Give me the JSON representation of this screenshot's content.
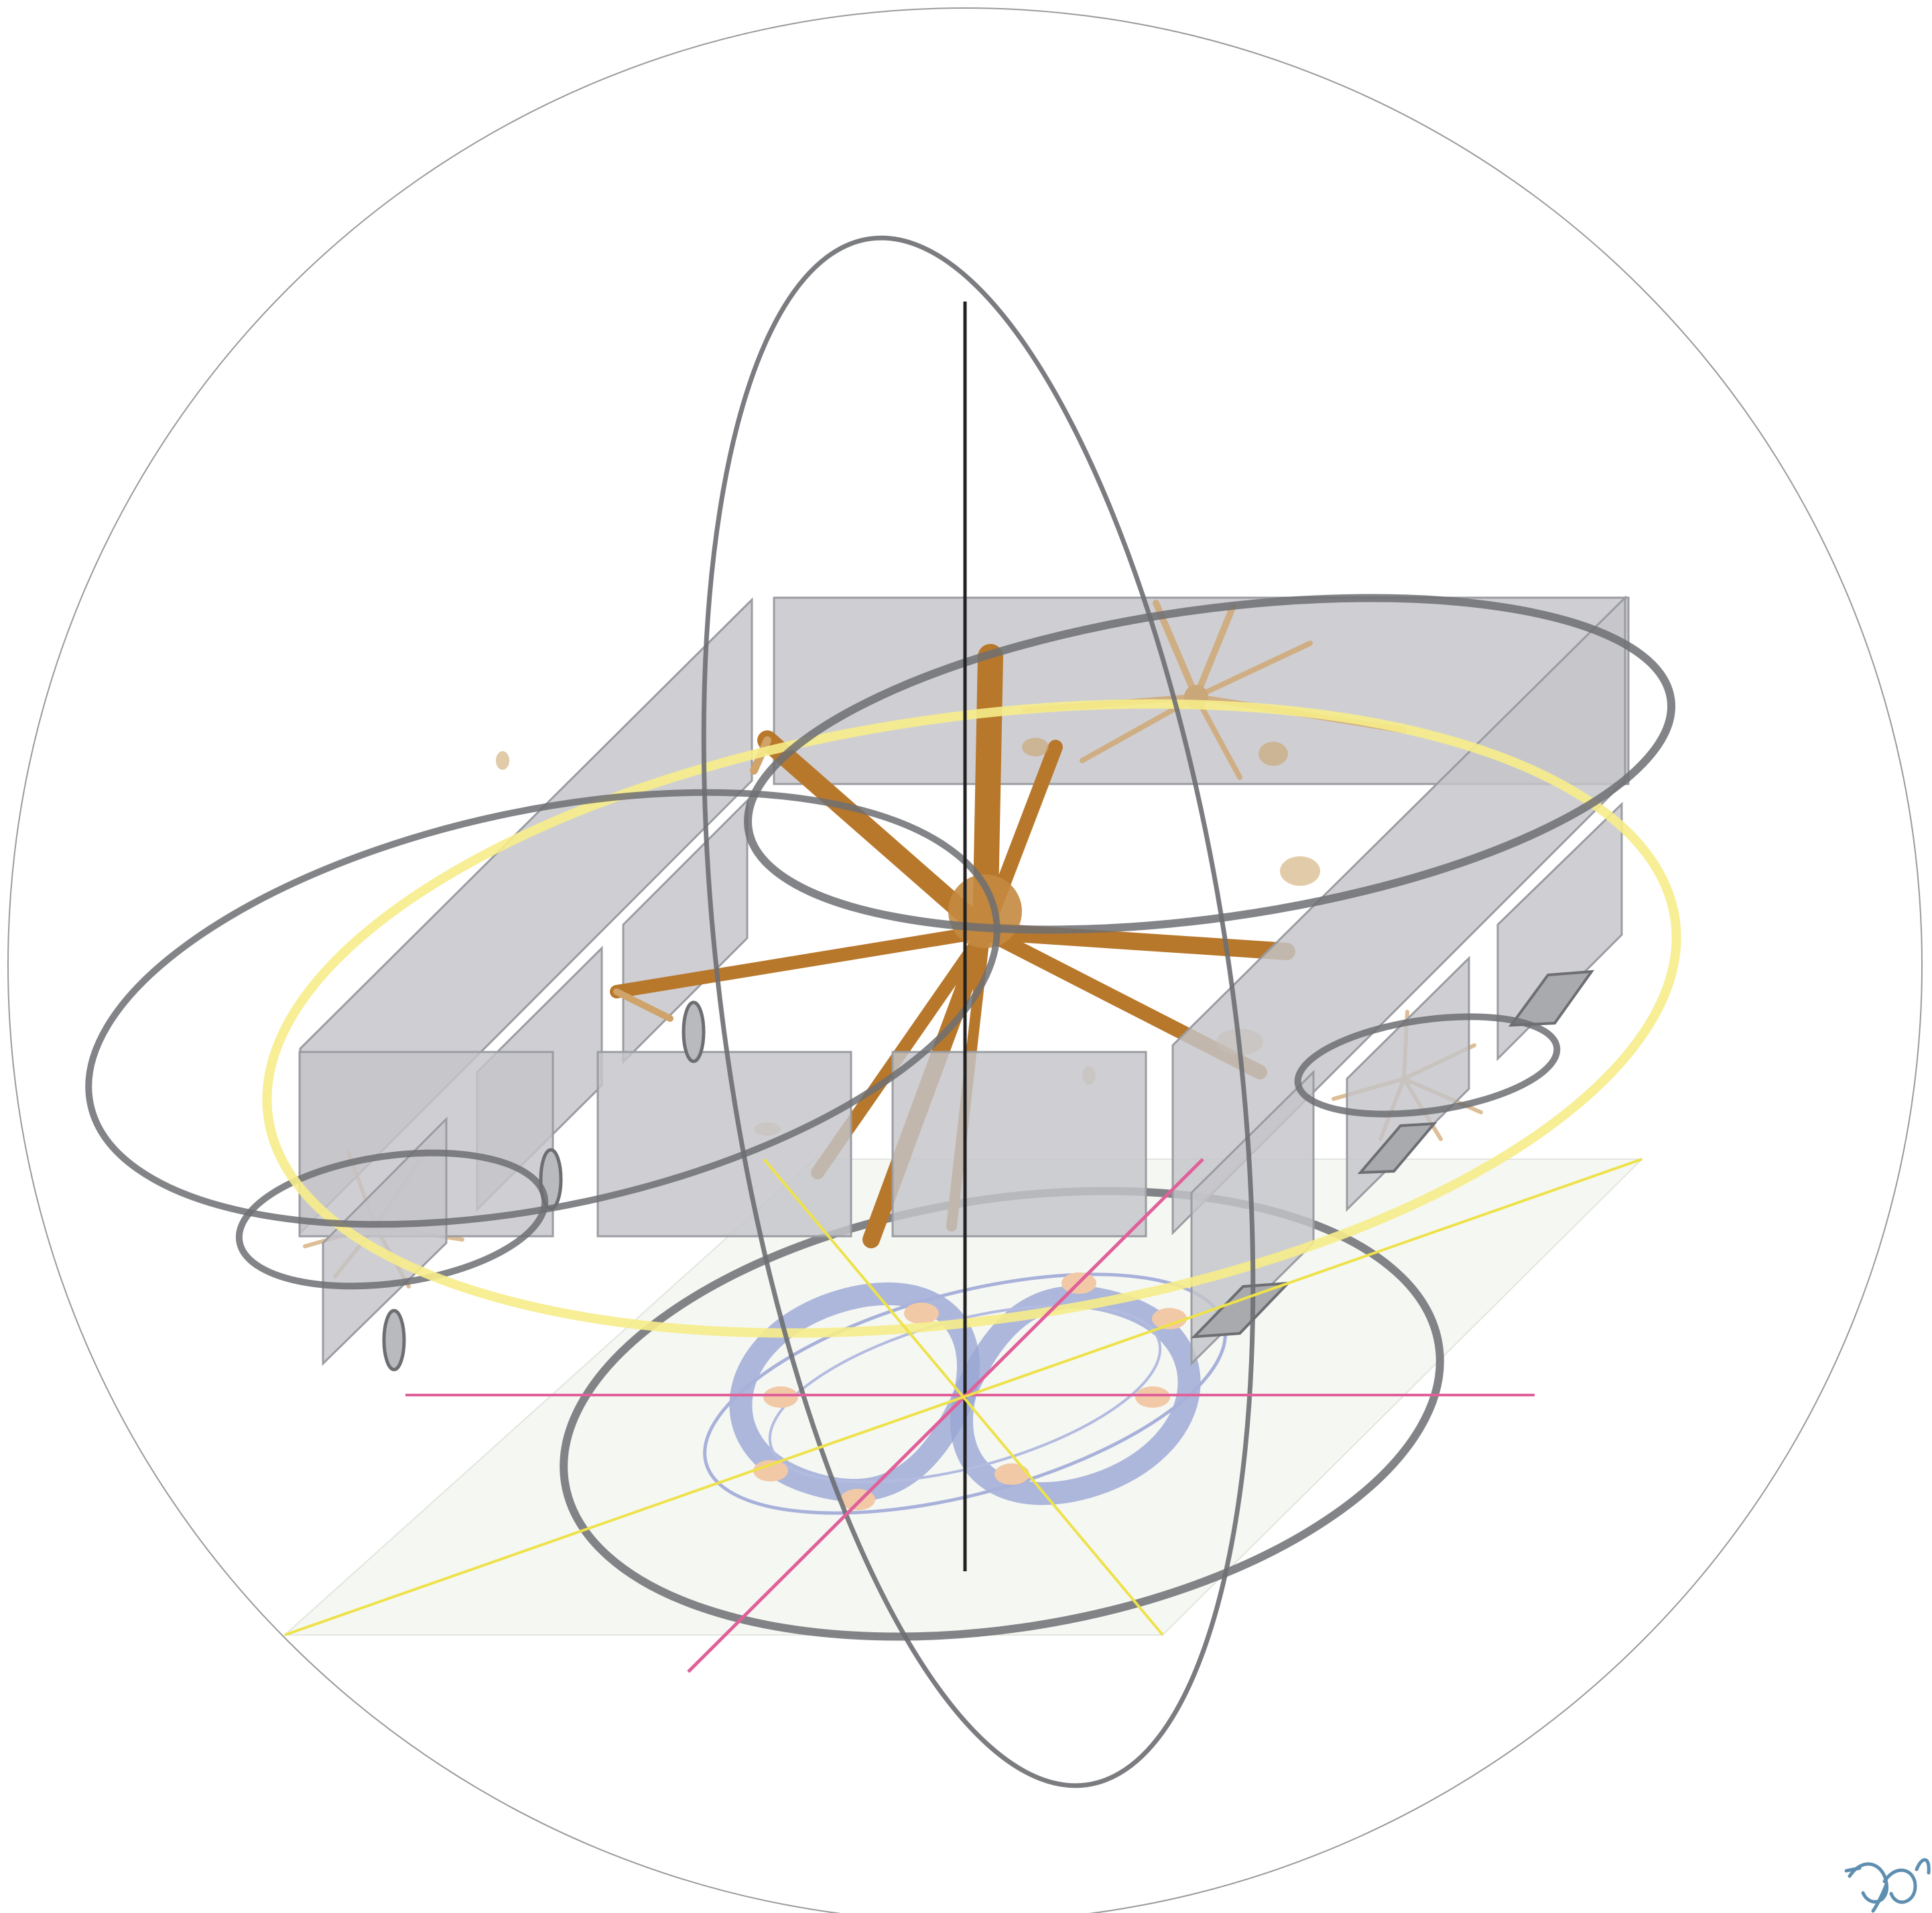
{
  "colors": {
    "background": "#ffffff",
    "outer_circle": "#9a9a9a",
    "plate_fill": "#c4c5c9",
    "ring_dark": "#6d6e72",
    "ring_yellow": "#f6ec8a",
    "axis_pink": "#e0609a",
    "axis_yellow": "#eee24a",
    "axis_vertical": "#222222",
    "ground_plane": "#f1f4ef",
    "spiral_blue": "#9aa6d4",
    "node_peach": "#f2c9a6",
    "cell_brown": "#b8782c",
    "logo_blue": "#5e8fb0"
  },
  "icons": {
    "logo": "butterfly-signature-icon"
  }
}
